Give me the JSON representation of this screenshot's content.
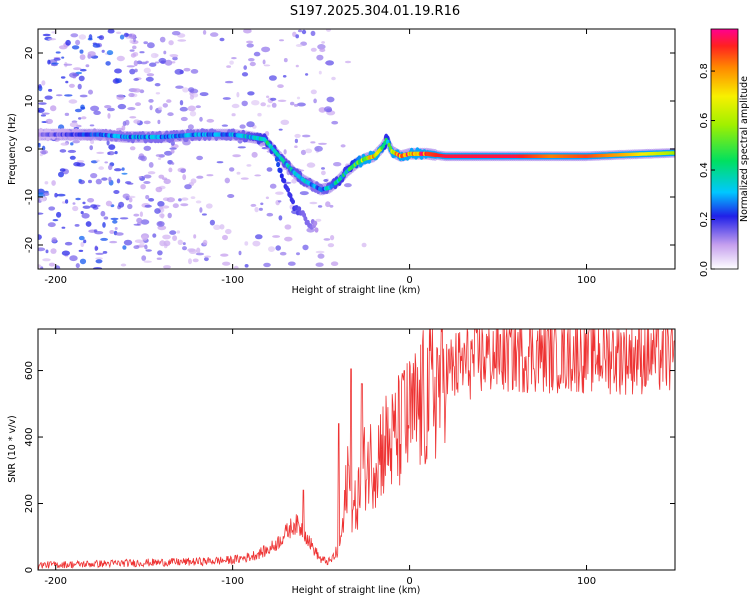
{
  "chart_data": [
    {
      "type": "heatmap",
      "title": "S197.2025.304.01.19.R16",
      "xlabel": "Height of straight line (km)",
      "ylabel": "Frequency (Hz)",
      "xlim": [
        -210,
        150
      ],
      "ylim": [
        -25,
        25
      ],
      "xticks": [
        -200,
        -100,
        0,
        100
      ],
      "yticks": [
        -20,
        -10,
        0,
        10,
        20
      ],
      "colorbar": {
        "label": "Normalized spectral amplitude",
        "range": [
          0,
          0.97
        ],
        "ticks": [
          0.0,
          0.2,
          0.4,
          0.6,
          0.8
        ],
        "tick_labels": [
          "0.0",
          "0.2",
          "0.4",
          "0.6",
          "0.8"
        ]
      },
      "ridge": {
        "x": [
          -205,
          -190,
          -175,
          -160,
          -140,
          -120,
          -100,
          -90,
          -82,
          -75,
          -70,
          -65,
          -60,
          -55,
          -50,
          -45,
          -40,
          -35,
          -30,
          -25,
          -20,
          -15,
          -13,
          -10,
          -5,
          0,
          5,
          10,
          20,
          40,
          60,
          80,
          100,
          120,
          150
        ],
        "y": [
          3,
          3,
          3,
          2.5,
          2.5,
          3,
          3,
          2.5,
          2,
          -1,
          -3,
          -5,
          -6.5,
          -7.5,
          -8.5,
          -8,
          -6.5,
          -4.5,
          -3,
          -2,
          -1.5,
          0.5,
          2,
          -0.5,
          -1.5,
          -1,
          -1,
          -1,
          -1.5,
          -1.5,
          -1.5,
          -1.5,
          -1.5,
          -1.2,
          -0.8
        ],
        "amplitude": [
          0.15,
          0.2,
          0.25,
          0.3,
          0.3,
          0.3,
          0.3,
          0.35,
          0.4,
          0.4,
          0.35,
          0.35,
          0.35,
          0.3,
          0.3,
          0.35,
          0.4,
          0.4,
          0.5,
          0.7,
          0.8,
          0.5,
          0.4,
          0.7,
          0.85,
          0.9,
          0.95,
          0.9,
          0.95,
          0.95,
          0.95,
          0.85,
          0.9,
          0.8,
          0.6
        ]
      },
      "branch": {
        "x": [
          -75,
          -70,
          -65,
          -60,
          -56,
          -52
        ],
        "y": [
          -2,
          -8,
          -12,
          -14,
          -15.5,
          -16.5
        ],
        "amplitude": [
          0.25,
          0.2,
          0.2,
          0.15,
          0.15,
          0.1
        ]
      }
    },
    {
      "type": "line",
      "title": "",
      "xlabel": "Height of straight line (km)",
      "ylabel": "SNR (10 * v/v)",
      "xlim": [
        -210,
        150
      ],
      "ylim": [
        0,
        725
      ],
      "xticks": [
        -200,
        -100,
        0,
        100
      ],
      "yticks": [
        0,
        200,
        400,
        600
      ],
      "color": "#ee3333",
      "series": [
        {
          "name": "SNR",
          "x": [
            -210,
            -180,
            -150,
            -120,
            -100,
            -90,
            -85,
            -80,
            -75,
            -70,
            -65,
            -60,
            -55,
            -50,
            -45,
            -40,
            -37,
            -35,
            -33,
            -30,
            -25,
            -20,
            -15,
            -10,
            -5,
            0,
            5,
            10,
            15,
            20,
            30,
            40,
            50,
            60,
            80,
            100,
            120,
            150
          ],
          "y": [
            15,
            18,
            22,
            25,
            30,
            40,
            50,
            60,
            80,
            110,
            140,
            120,
            70,
            30,
            25,
            60,
            150,
            320,
            150,
            200,
            320,
            330,
            380,
            380,
            420,
            450,
            480,
            520,
            560,
            590,
            620,
            640,
            650,
            655,
            655,
            655,
            650,
            650
          ]
        }
      ],
      "peaks": {
        "x": [
          -60,
          -40,
          -33,
          -27,
          -3
        ],
        "y": [
          240,
          440,
          605,
          560,
          600
        ]
      }
    }
  ]
}
